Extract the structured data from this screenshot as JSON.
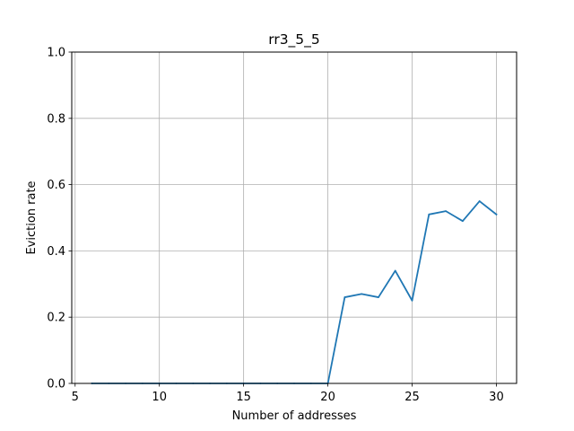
{
  "chart_data": {
    "type": "line",
    "title": "rr3_5_5",
    "xlabel": "Number of addresses",
    "ylabel": "Eviction rate",
    "xlim": [
      4.8,
      31.2
    ],
    "ylim": [
      0.0,
      1.0
    ],
    "xticks": [
      5,
      10,
      15,
      20,
      25,
      30
    ],
    "xtick_labels": [
      "5",
      "10",
      "15",
      "20",
      "25",
      "30"
    ],
    "yticks": [
      0.0,
      0.2,
      0.4,
      0.6,
      0.8,
      1.0
    ],
    "ytick_labels": [
      "0.0",
      "0.2",
      "0.4",
      "0.6",
      "0.8",
      "1.0"
    ],
    "grid": true,
    "series": [
      {
        "color": "#1f77b4",
        "x": [
          6,
          7,
          8,
          9,
          10,
          11,
          12,
          13,
          14,
          15,
          16,
          17,
          18,
          19,
          20,
          21,
          22,
          23,
          24,
          25,
          26,
          27,
          28,
          29,
          30
        ],
        "y": [
          0,
          0,
          0,
          0,
          0,
          0,
          0,
          0,
          0,
          0,
          0,
          0,
          0,
          0,
          0,
          0.26,
          0.27,
          0.26,
          0.34,
          0.25,
          0.51,
          0.52,
          0.49,
          0.55,
          0.51
        ]
      }
    ]
  }
}
